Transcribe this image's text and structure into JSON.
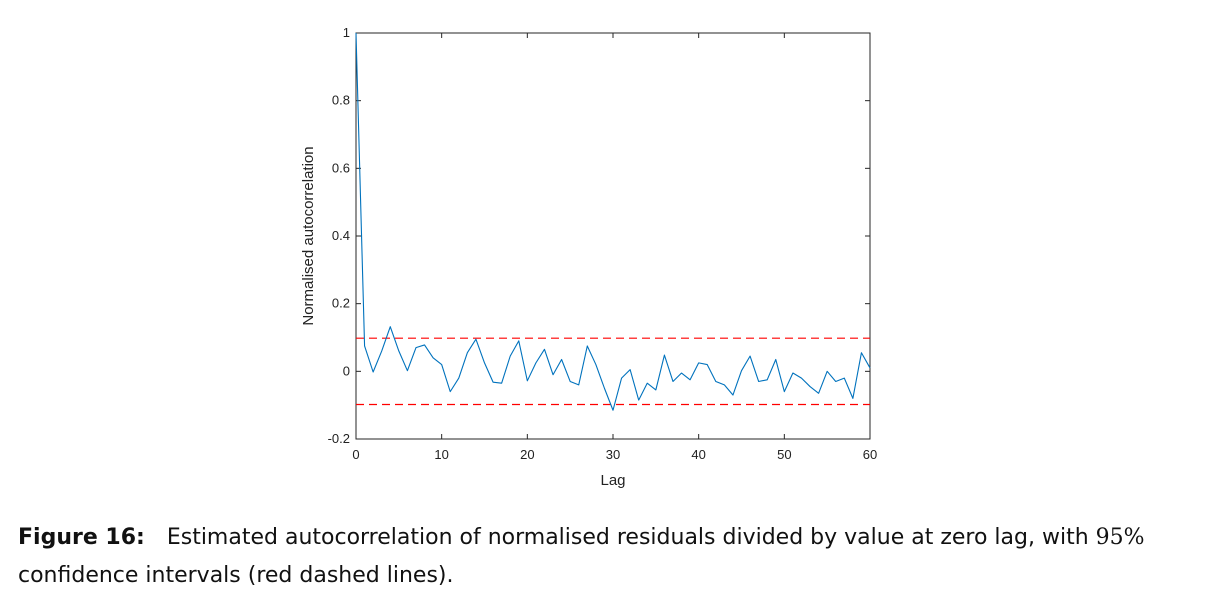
{
  "chart_data": {
    "type": "line",
    "xlabel": "Lag",
    "ylabel": "Normalised autocorrelation",
    "xlim": [
      0,
      60
    ],
    "ylim": [
      -0.2,
      1
    ],
    "xticks": [
      0,
      10,
      20,
      30,
      40,
      50,
      60
    ],
    "yticks": [
      -0.2,
      0,
      0.2,
      0.4,
      0.6,
      0.8,
      1
    ],
    "grid": false,
    "series": [
      {
        "color": "#0072bd",
        "x": [
          0,
          1,
          2,
          3,
          4,
          5,
          6,
          7,
          8,
          9,
          10,
          11,
          12,
          13,
          14,
          15,
          16,
          17,
          18,
          19,
          20,
          21,
          22,
          23,
          24,
          25,
          26,
          27,
          28,
          29,
          30,
          31,
          32,
          33,
          34,
          35,
          36,
          37,
          38,
          39,
          40,
          41,
          42,
          43,
          44,
          45,
          46,
          47,
          48,
          49,
          50,
          51,
          52,
          53,
          54,
          55,
          56,
          57,
          58,
          59,
          60
        ],
        "values": [
          1,
          0.075,
          -0.002,
          0.06,
          0.132,
          0.06,
          0.002,
          0.07,
          0.078,
          0.04,
          0.02,
          -0.06,
          -0.02,
          0.055,
          0.095,
          0.025,
          -0.032,
          -0.035,
          0.045,
          0.09,
          -0.028,
          0.025,
          0.065,
          -0.01,
          0.035,
          -0.03,
          -0.04,
          0.075,
          0.02,
          -0.05,
          -0.115,
          -0.02,
          0.005,
          -0.085,
          -0.035,
          -0.055,
          0.048,
          -0.03,
          -0.005,
          -0.025,
          0.025,
          0.02,
          -0.03,
          -0.04,
          -0.07,
          0.002,
          0.045,
          -0.03,
          -0.025,
          0.035,
          -0.06,
          -0.005,
          -0.02,
          -0.045,
          -0.065,
          0.0,
          -0.03,
          -0.02,
          -0.08,
          0.055,
          0.01
        ]
      }
    ],
    "reference_lines": [
      {
        "y": 0.098,
        "color": "#ff0000",
        "style": "dashed"
      },
      {
        "y": -0.098,
        "color": "#ff0000",
        "style": "dashed"
      }
    ]
  },
  "caption": {
    "label": "Figure 16:",
    "text_before": "Estimated autocorrelation of normalised residuals divided by value at zero lag, with ",
    "math": "95%",
    "text_after": " confidence intervals (red dashed lines)."
  }
}
